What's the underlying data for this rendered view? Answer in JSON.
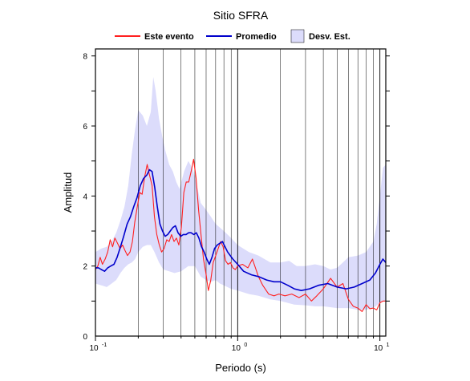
{
  "chart_data": {
    "type": "line",
    "title": "Sitio SFRA",
    "xlabel": "Periodo (s)",
    "ylabel": "Amplitud",
    "x_scale": "log",
    "xlim": [
      0.1,
      11
    ],
    "ylim": [
      0,
      8.2
    ],
    "grid": true,
    "legend": "top",
    "x_ticks": [
      {
        "value": 0.1,
        "base": "10",
        "exp": "-1"
      },
      {
        "value": 1,
        "base": "10",
        "exp": "0"
      },
      {
        "value": 10,
        "base": "10",
        "exp": "1"
      }
    ],
    "y_ticks": [
      0,
      2,
      4,
      6,
      8
    ],
    "series": [
      {
        "name": "Este evento",
        "kind": "line",
        "color": "#ff2020",
        "points": [
          [
            0.1,
            1.9
          ],
          [
            0.104,
            2.0
          ],
          [
            0.108,
            2.25
          ],
          [
            0.112,
            2.05
          ],
          [
            0.117,
            2.2
          ],
          [
            0.122,
            2.4
          ],
          [
            0.127,
            2.75
          ],
          [
            0.132,
            2.55
          ],
          [
            0.137,
            2.8
          ],
          [
            0.143,
            2.65
          ],
          [
            0.149,
            2.5
          ],
          [
            0.155,
            2.6
          ],
          [
            0.161,
            2.45
          ],
          [
            0.168,
            2.3
          ],
          [
            0.175,
            2.4
          ],
          [
            0.182,
            2.7
          ],
          [
            0.189,
            3.25
          ],
          [
            0.197,
            3.7
          ],
          [
            0.205,
            4.1
          ],
          [
            0.213,
            4.05
          ],
          [
            0.222,
            4.55
          ],
          [
            0.231,
            4.9
          ],
          [
            0.24,
            4.6
          ],
          [
            0.25,
            4.3
          ],
          [
            0.26,
            3.4
          ],
          [
            0.27,
            2.9
          ],
          [
            0.281,
            2.6
          ],
          [
            0.292,
            2.4
          ],
          [
            0.304,
            2.5
          ],
          [
            0.317,
            2.75
          ],
          [
            0.33,
            2.7
          ],
          [
            0.343,
            2.9
          ],
          [
            0.357,
            2.7
          ],
          [
            0.371,
            2.8
          ],
          [
            0.386,
            2.6
          ],
          [
            0.402,
            3.1
          ],
          [
            0.418,
            4.1
          ],
          [
            0.435,
            4.4
          ],
          [
            0.453,
            4.4
          ],
          [
            0.471,
            4.7
          ],
          [
            0.49,
            5.05
          ],
          [
            0.51,
            4.5
          ],
          [
            0.531,
            3.6
          ],
          [
            0.552,
            2.9
          ],
          [
            0.575,
            2.2
          ],
          [
            0.598,
            1.8
          ],
          [
            0.622,
            1.3
          ],
          [
            0.647,
            1.6
          ],
          [
            0.673,
            2.1
          ],
          [
            0.701,
            2.3
          ],
          [
            0.729,
            2.5
          ],
          [
            0.759,
            2.7
          ],
          [
            0.79,
            2.55
          ],
          [
            0.822,
            2.15
          ],
          [
            0.855,
            2.05
          ],
          [
            0.89,
            2.1
          ],
          [
            0.926,
            1.95
          ],
          [
            0.963,
            1.9
          ],
          [
            1.0,
            2.0
          ],
          [
            1.08,
            2.05
          ],
          [
            1.18,
            1.95
          ],
          [
            1.27,
            2.2
          ],
          [
            1.4,
            1.7
          ],
          [
            1.5,
            1.45
          ],
          [
            1.65,
            1.2
          ],
          [
            1.8,
            1.15
          ],
          [
            1.95,
            1.2
          ],
          [
            2.15,
            1.15
          ],
          [
            2.4,
            1.2
          ],
          [
            2.7,
            1.1
          ],
          [
            3.0,
            1.2
          ],
          [
            3.3,
            1.0
          ],
          [
            3.6,
            1.15
          ],
          [
            4.0,
            1.35
          ],
          [
            4.5,
            1.65
          ],
          [
            5.0,
            1.4
          ],
          [
            5.5,
            1.5
          ],
          [
            6.0,
            1.05
          ],
          [
            6.5,
            0.85
          ],
          [
            7.0,
            0.8
          ],
          [
            7.5,
            0.7
          ],
          [
            8.0,
            0.9
          ],
          [
            8.5,
            0.78
          ],
          [
            9.0,
            0.8
          ],
          [
            9.5,
            0.75
          ],
          [
            10.0,
            0.95
          ],
          [
            10.5,
            1.0
          ],
          [
            11.0,
            1.0
          ]
        ]
      },
      {
        "name": "Promedio",
        "kind": "line",
        "color": "#0000cc",
        "points": [
          [
            0.1,
            1.95
          ],
          [
            0.105,
            1.95
          ],
          [
            0.11,
            1.9
          ],
          [
            0.116,
            1.85
          ],
          [
            0.122,
            1.95
          ],
          [
            0.128,
            2.0
          ],
          [
            0.135,
            2.05
          ],
          [
            0.142,
            2.25
          ],
          [
            0.15,
            2.55
          ],
          [
            0.158,
            2.85
          ],
          [
            0.167,
            3.2
          ],
          [
            0.176,
            3.4
          ],
          [
            0.186,
            3.7
          ],
          [
            0.196,
            3.95
          ],
          [
            0.207,
            4.3
          ],
          [
            0.218,
            4.5
          ],
          [
            0.23,
            4.6
          ],
          [
            0.24,
            4.75
          ],
          [
            0.25,
            4.7
          ],
          [
            0.261,
            4.25
          ],
          [
            0.272,
            3.7
          ],
          [
            0.284,
            3.2
          ],
          [
            0.296,
            3.0
          ],
          [
            0.309,
            2.85
          ],
          [
            0.322,
            2.9
          ],
          [
            0.336,
            3.0
          ],
          [
            0.35,
            3.1
          ],
          [
            0.365,
            3.15
          ],
          [
            0.381,
            2.95
          ],
          [
            0.398,
            2.85
          ],
          [
            0.415,
            2.9
          ],
          [
            0.433,
            2.9
          ],
          [
            0.452,
            2.95
          ],
          [
            0.471,
            2.95
          ],
          [
            0.491,
            2.9
          ],
          [
            0.512,
            2.95
          ],
          [
            0.534,
            2.8
          ],
          [
            0.557,
            2.55
          ],
          [
            0.581,
            2.4
          ],
          [
            0.606,
            2.2
          ],
          [
            0.632,
            2.05
          ],
          [
            0.66,
            2.25
          ],
          [
            0.688,
            2.5
          ],
          [
            0.718,
            2.6
          ],
          [
            0.749,
            2.65
          ],
          [
            0.781,
            2.7
          ],
          [
            0.815,
            2.55
          ],
          [
            0.85,
            2.4
          ],
          [
            0.887,
            2.3
          ],
          [
            0.925,
            2.2
          ],
          [
            1.0,
            2.05
          ],
          [
            1.1,
            1.85
          ],
          [
            1.25,
            1.75
          ],
          [
            1.4,
            1.7
          ],
          [
            1.6,
            1.6
          ],
          [
            1.8,
            1.55
          ],
          [
            2.0,
            1.55
          ],
          [
            2.25,
            1.45
          ],
          [
            2.5,
            1.35
          ],
          [
            2.8,
            1.3
          ],
          [
            3.2,
            1.35
          ],
          [
            3.7,
            1.45
          ],
          [
            4.3,
            1.5
          ],
          [
            5.0,
            1.4
          ],
          [
            5.8,
            1.35
          ],
          [
            6.6,
            1.4
          ],
          [
            7.5,
            1.5
          ],
          [
            8.5,
            1.6
          ],
          [
            9.3,
            1.8
          ],
          [
            10.0,
            2.05
          ],
          [
            10.5,
            2.2
          ],
          [
            11.0,
            2.1
          ]
        ]
      },
      {
        "name": "Desv. Est.",
        "kind": "band",
        "color": "#dcdcfb",
        "upper": [
          [
            0.1,
            2.4
          ],
          [
            0.11,
            2.5
          ],
          [
            0.12,
            2.55
          ],
          [
            0.13,
            2.7
          ],
          [
            0.14,
            2.95
          ],
          [
            0.15,
            3.3
          ],
          [
            0.16,
            3.7
          ],
          [
            0.17,
            4.3
          ],
          [
            0.18,
            5.2
          ],
          [
            0.19,
            5.9
          ],
          [
            0.2,
            6.45
          ],
          [
            0.215,
            6.3
          ],
          [
            0.23,
            6.0
          ],
          [
            0.245,
            6.4
          ],
          [
            0.255,
            7.4
          ],
          [
            0.265,
            7.0
          ],
          [
            0.28,
            6.2
          ],
          [
            0.295,
            5.7
          ],
          [
            0.31,
            5.3
          ],
          [
            0.33,
            4.9
          ],
          [
            0.35,
            4.7
          ],
          [
            0.37,
            4.4
          ],
          [
            0.39,
            4.2
          ],
          [
            0.42,
            4.7
          ],
          [
            0.45,
            5.0
          ],
          [
            0.48,
            4.8
          ],
          [
            0.51,
            4.4
          ],
          [
            0.55,
            3.8
          ],
          [
            0.6,
            3.6
          ],
          [
            0.65,
            3.4
          ],
          [
            0.7,
            3.2
          ],
          [
            0.75,
            3.1
          ],
          [
            0.8,
            3.0
          ],
          [
            0.9,
            2.8
          ],
          [
            1.0,
            2.6
          ],
          [
            1.2,
            2.4
          ],
          [
            1.4,
            2.3
          ],
          [
            1.7,
            2.1
          ],
          [
            2.0,
            2.1
          ],
          [
            2.3,
            2.15
          ],
          [
            2.6,
            2.0
          ],
          [
            3.0,
            2.0
          ],
          [
            3.5,
            2.05
          ],
          [
            4.0,
            2.0
          ],
          [
            4.5,
            1.9
          ],
          [
            5.0,
            1.95
          ],
          [
            5.5,
            2.1
          ],
          [
            6.0,
            2.25
          ],
          [
            7.0,
            2.3
          ],
          [
            8.0,
            2.4
          ],
          [
            9.0,
            2.7
          ],
          [
            9.5,
            3.2
          ],
          [
            10.0,
            4.0
          ],
          [
            10.5,
            4.8
          ],
          [
            11.0,
            4.9
          ]
        ],
        "lower": [
          [
            0.1,
            1.5
          ],
          [
            0.11,
            1.45
          ],
          [
            0.12,
            1.4
          ],
          [
            0.13,
            1.5
          ],
          [
            0.14,
            1.6
          ],
          [
            0.15,
            1.8
          ],
          [
            0.16,
            1.95
          ],
          [
            0.17,
            2.05
          ],
          [
            0.18,
            2.1
          ],
          [
            0.19,
            2.2
          ],
          [
            0.2,
            2.4
          ],
          [
            0.215,
            2.55
          ],
          [
            0.23,
            2.6
          ],
          [
            0.245,
            2.6
          ],
          [
            0.26,
            2.4
          ],
          [
            0.28,
            2.1
          ],
          [
            0.3,
            1.9
          ],
          [
            0.33,
            1.85
          ],
          [
            0.36,
            1.8
          ],
          [
            0.4,
            1.85
          ],
          [
            0.45,
            2.0
          ],
          [
            0.5,
            2.0
          ],
          [
            0.55,
            1.7
          ],
          [
            0.6,
            1.6
          ],
          [
            0.65,
            1.55
          ],
          [
            0.7,
            1.6
          ],
          [
            0.75,
            1.5
          ],
          [
            0.8,
            1.45
          ],
          [
            0.9,
            1.35
          ],
          [
            1.0,
            1.3
          ],
          [
            1.2,
            1.2
          ],
          [
            1.4,
            1.15
          ],
          [
            1.7,
            1.05
          ],
          [
            2.0,
            1.0
          ],
          [
            2.5,
            0.9
          ],
          [
            3.0,
            0.88
          ],
          [
            3.5,
            0.85
          ],
          [
            4.0,
            0.85
          ],
          [
            5.0,
            0.8
          ],
          [
            6.0,
            0.8
          ],
          [
            7.0,
            0.75
          ],
          [
            8.0,
            0.75
          ],
          [
            9.0,
            0.8
          ],
          [
            10.0,
            0.95
          ],
          [
            11.0,
            1.0
          ]
        ]
      }
    ]
  }
}
